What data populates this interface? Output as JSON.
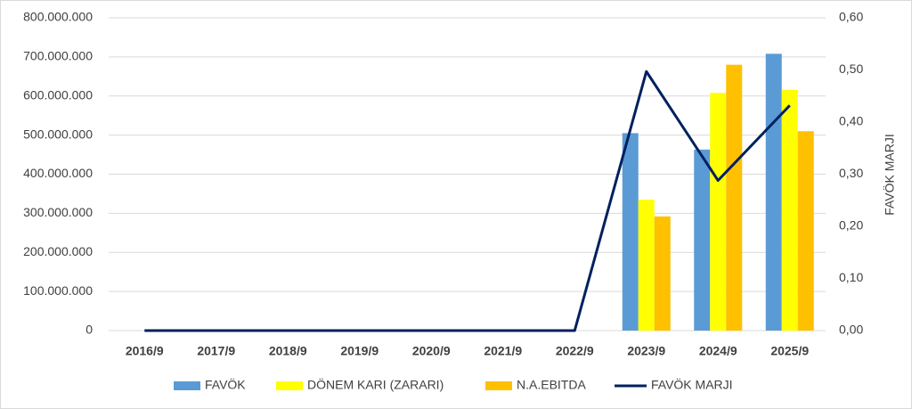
{
  "chart_data": {
    "type": "bar",
    "categories": [
      "2016/9",
      "2017/9",
      "2018/9",
      "2019/9",
      "2020/9",
      "2021/9",
      "2022/9",
      "2023/9",
      "2024/9",
      "2025/9"
    ],
    "series": [
      {
        "name": "FAVÖK",
        "color": "#5b9bd5",
        "values": [
          0,
          0,
          0,
          0,
          0,
          0,
          0,
          505000000,
          463000000,
          708000000
        ]
      },
      {
        "name": "DÖNEM KARI (ZARARI)",
        "color": "#ffff00",
        "values": [
          0,
          0,
          0,
          0,
          0,
          0,
          0,
          335000000,
          608000000,
          616000000
        ]
      },
      {
        "name": "N.A.EBITDA",
        "color": "#ffc000",
        "values": [
          0,
          0,
          0,
          0,
          0,
          0,
          0,
          292000000,
          680000000,
          510000000
        ]
      },
      {
        "name": "FAVÖK MARJI",
        "color": "#002060",
        "type": "line",
        "axis": "y2",
        "values": [
          0,
          0,
          0,
          0,
          0,
          0,
          0,
          0.497,
          0.288,
          0.432
        ]
      }
    ],
    "ylim": [
      0,
      800000000
    ],
    "yticks": [
      {
        "value": 0,
        "label": "0"
      },
      {
        "value": 100000000,
        "label": "100.000.000"
      },
      {
        "value": 200000000,
        "label": "200.000.000"
      },
      {
        "value": 300000000,
        "label": "300.000.000"
      },
      {
        "value": 400000000,
        "label": "400.000.000"
      },
      {
        "value": 500000000,
        "label": "500.000.000"
      },
      {
        "value": 600000000,
        "label": "600.000.000"
      },
      {
        "value": 700000000,
        "label": "700.000.000"
      },
      {
        "value": 800000000,
        "label": "800.000.000"
      }
    ],
    "y2label": "FAVÖK MARJI",
    "y2lim": [
      0,
      0.6
    ],
    "y2ticks": [
      {
        "value": 0,
        "label": "0,00"
      },
      {
        "value": 0.1,
        "label": "0,10"
      },
      {
        "value": 0.2,
        "label": "0,20"
      },
      {
        "value": 0.3,
        "label": "0,30"
      },
      {
        "value": 0.4,
        "label": "0,40"
      },
      {
        "value": 0.5,
        "label": "0,50"
      },
      {
        "value": 0.6,
        "label": "0,60"
      }
    ],
    "grid": true,
    "legend": "bottom"
  }
}
